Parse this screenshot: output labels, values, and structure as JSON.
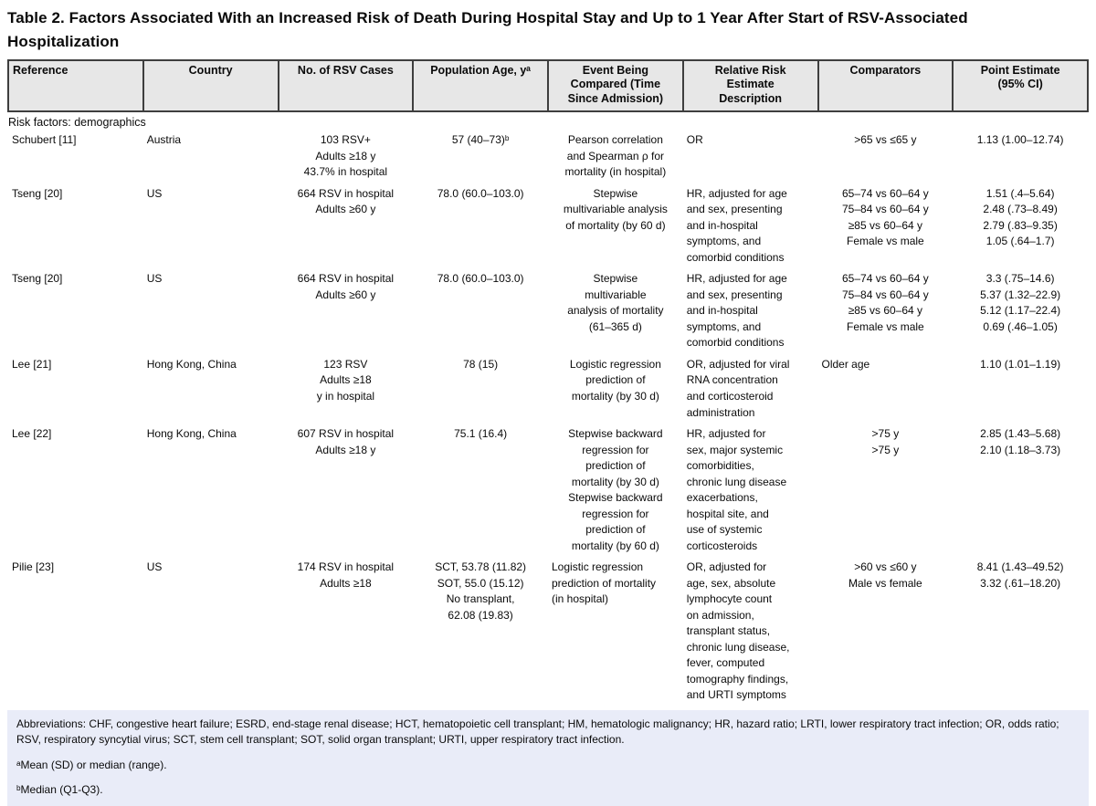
{
  "title": "Table 2. Factors Associated With an Increased Risk of Death During Hospital Stay and Up to 1 Year After Start of RSV-Associated Hospitalization",
  "colors": {
    "header_bg": "#e7e7e7",
    "header_border": "#3e3e3e",
    "footer_bg": "#e9ecf8",
    "text": "#0a0a0a"
  },
  "table": {
    "columns": [
      "Reference",
      "Country",
      "No. of RSV Cases",
      "Population Age, yᵃ",
      "Event Being\nCompared (Time\nSince Admission)",
      "Relative Risk\nEstimate\nDescription",
      "Comparators",
      "Point Estimate\n(95% CI)"
    ],
    "section_label": "Risk factors: demographics",
    "rows": [
      {
        "ref": "Schubert [11]",
        "country": "Austria",
        "cases": "103 RSV+\nAdults ≥18 y\n43.7% in hospital",
        "age": "57 (40–73)ᵇ",
        "event": "Pearson correlation\nand Spearman ρ for\nmortality (in hospital)",
        "rr": "OR",
        "comp": ">65 vs ≤65 y",
        "pe": "1.13 (1.00–12.74)"
      },
      {
        "ref": "Tseng [20]",
        "country": "US",
        "cases": "664 RSV in hospital\nAdults ≥60 y",
        "age": "78.0 (60.0–103.0)",
        "event": "Stepwise\nmultivariable analysis\nof mortality (by 60 d)",
        "rr": "HR, adjusted for age\nand sex, presenting\nand in-hospital\nsymptoms, and\ncomorbid conditions",
        "comp": "65–74 vs 60–64 y\n75–84 vs 60–64 y\n≥85 vs 60–64 y\nFemale vs male",
        "pe": "1.51 (.4–5.64)\n2.48 (.73–8.49)\n2.79 (.83–9.35)\n1.05 (.64–1.7)"
      },
      {
        "ref": "Tseng [20]",
        "country": "US",
        "cases": "664 RSV in hospital\nAdults ≥60 y",
        "age": "78.0 (60.0–103.0)",
        "event": "Stepwise\nmultivariable\nanalysis of mortality\n(61–365 d)",
        "rr": "HR, adjusted for age\nand sex, presenting\nand in-hospital\nsymptoms, and\ncomorbid conditions",
        "comp": "65–74 vs 60–64 y\n75–84 vs 60–64 y\n≥85 vs 60–64 y\nFemale vs male",
        "pe": "3.3 (.75–14.6)\n5.37 (1.32–22.9)\n5.12 (1.17–22.4)\n0.69 (.46–1.05)"
      },
      {
        "ref": "Lee [21]",
        "country": "Hong Kong, China",
        "cases": "123 RSV\nAdults ≥18\ny in hospital",
        "age": "78 (15)",
        "event": "Logistic regression\nprediction of\nmortality (by 30 d)",
        "rr": "OR, adjusted for viral\nRNA concentration\nand corticosteroid\nadministration",
        "comp": "Older age",
        "pe": "1.10 (1.01–1.19)"
      },
      {
        "ref": "Lee [22]",
        "country": "Hong Kong, China",
        "cases": "607 RSV in hospital\nAdults ≥18 y",
        "age": "75.1 (16.4)",
        "event": "Stepwise backward\nregression for\nprediction of\nmortality (by 30 d)\nStepwise backward\nregression for\nprediction of\nmortality (by 60 d)",
        "rr": "HR, adjusted for\nsex, major systemic\ncomorbidities,\nchronic lung disease\nexacerbations,\nhospital site, and\nuse of systemic\ncorticosteroids",
        "comp": ">75 y\n>75 y",
        "pe": "2.85 (1.43–5.68)\n2.10 (1.18–3.73)"
      },
      {
        "ref": "Pilie [23]",
        "country": "US",
        "cases": "174 RSV in hospital\nAdults ≥18",
        "age": "SCT, 53.78 (11.82)\nSOT, 55.0 (15.12)\nNo transplant,\n62.08 (19.83)",
        "event": "Logistic regression\nprediction of mortality\n(in hospital)",
        "rr": "OR, adjusted for\nage, sex, absolute\nlymphocyte count\non admission,\ntransplant status,\nchronic lung disease,\nfever, computed\ntomography findings,\nand URTI symptoms",
        "comp": ">60 vs ≤60 y\nMale vs female",
        "pe": "8.41 (1.43–49.52)\n3.32 (.61–18.20)"
      }
    ]
  },
  "footer": {
    "abbreviations": "Abbreviations: CHF, congestive heart failure; ESRD, end-stage renal disease; HCT, hematopoietic cell transplant; HM, hematologic malignancy; HR, hazard ratio; LRTI, lower respiratory tract infection; OR, odds ratio; RSV, respiratory syncytial virus; SCT, stem cell transplant; SOT, solid organ transplant; URTI, upper respiratory tract infection.",
    "footnote_a": "ᵃMean (SD) or median (range).",
    "footnote_b": "ᵇMedian (Q1-Q3)."
  }
}
